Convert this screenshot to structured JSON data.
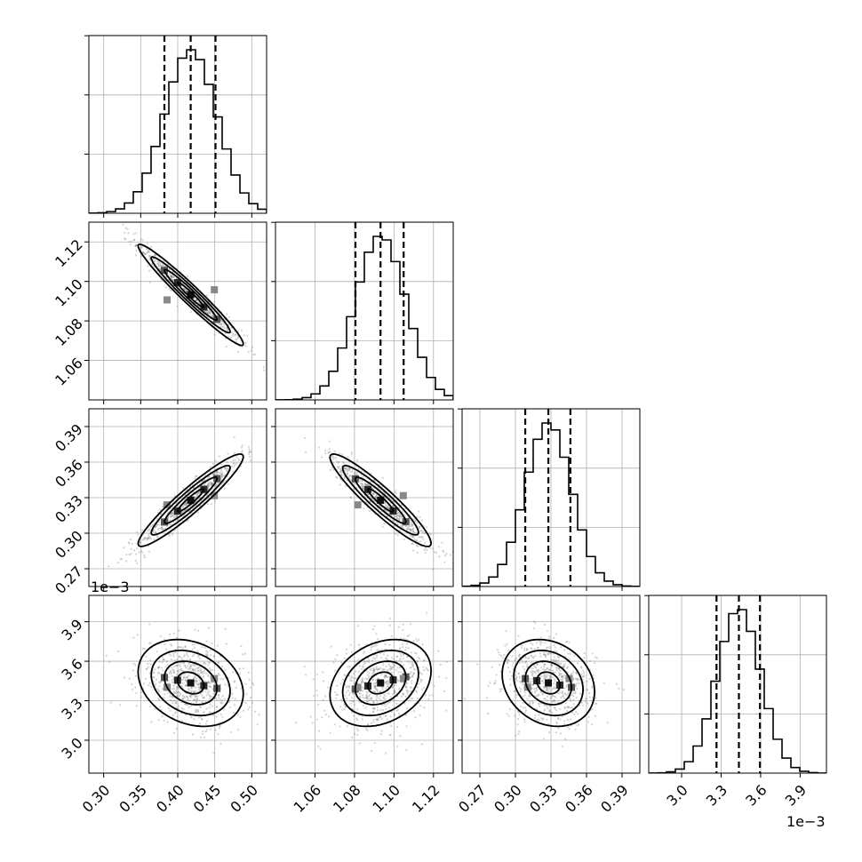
{
  "chart_data": {
    "type": "corner",
    "parameters": 4,
    "grid_lines": true,
    "quantile_lines": "dashed",
    "scale_labels": {
      "row3_y": "1e−3",
      "col3_x": "1e−3"
    },
    "axes": [
      {
        "range": [
          0.28,
          0.52
        ],
        "ticks": [
          0.3,
          0.35,
          0.4,
          0.45,
          0.5
        ],
        "tick_labels": [
          "0.30",
          "0.35",
          "0.40",
          "0.45",
          "0.50"
        ]
      },
      {
        "range": [
          1.04,
          1.13
        ],
        "ticks": [
          1.06,
          1.08,
          1.1,
          1.12
        ],
        "tick_labels": [
          "1.06",
          "1.08",
          "1.10",
          "1.12"
        ]
      },
      {
        "range": [
          0.255,
          0.405
        ],
        "ticks": [
          0.27,
          0.3,
          0.33,
          0.36,
          0.39
        ],
        "tick_labels": [
          "0.27",
          "0.30",
          "0.33",
          "0.36",
          "0.39"
        ]
      },
      {
        "range": [
          2.75,
          4.1
        ],
        "ticks": [
          3.0,
          3.3,
          3.6,
          3.9
        ],
        "tick_labels": [
          "3.0",
          "3.3",
          "3.6",
          "3.9"
        ]
      }
    ],
    "marginals": [
      {
        "mean": 0.4175,
        "sd": 0.0355,
        "quantiles": [
          0.382,
          0.4175,
          0.451
        ]
      },
      {
        "mean": 1.0932,
        "sd": 0.0128,
        "quantiles": [
          1.0805,
          1.0932,
          1.1049
        ]
      },
      {
        "mean": 0.3278,
        "sd": 0.0195,
        "quantiles": [
          0.3083,
          0.3278,
          0.3464
        ]
      },
      {
        "mean": 3.435,
        "sd": 0.165,
        "quantiles": [
          3.265,
          3.435,
          3.595
        ]
      }
    ],
    "correlations": [
      {
        "pair": [
          0,
          1
        ],
        "rho": -0.97
      },
      {
        "pair": [
          0,
          2
        ],
        "rho": 0.94
      },
      {
        "pair": [
          0,
          3
        ],
        "rho": -0.25
      },
      {
        "pair": [
          1,
          2
        ],
        "rho": -0.93
      },
      {
        "pair": [
          1,
          3
        ],
        "rho": 0.28
      },
      {
        "pair": [
          2,
          3
        ],
        "rho": -0.2
      }
    ]
  }
}
